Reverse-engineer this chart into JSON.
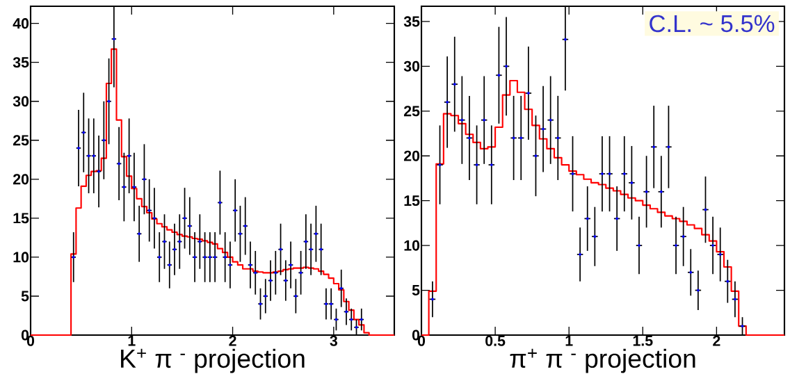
{
  "chart_data": [
    {
      "type": "scatter",
      "xlabel": "K$^{+}$ π $^{-}$ projection",
      "xlim": [
        0,
        3.6
      ],
      "ylim": [
        0,
        42.2
      ],
      "xticks": [
        0,
        1,
        2,
        3
      ],
      "yticks": [
        0,
        5,
        10,
        15,
        20,
        25,
        30,
        35,
        40
      ],
      "series": [
        {
          "color": "#0000ff",
          "marker": "circle",
          "x": [
            0.425,
            0.475,
            0.525,
            0.575,
            0.625,
            0.675,
            0.725,
            0.775,
            0.825,
            0.875,
            0.925,
            0.975,
            1.025,
            1.075,
            1.125,
            1.175,
            1.225,
            1.275,
            1.325,
            1.375,
            1.425,
            1.475,
            1.525,
            1.575,
            1.625,
            1.675,
            1.725,
            1.775,
            1.825,
            1.875,
            1.925,
            1.975,
            2.025,
            2.075,
            2.125,
            2.175,
            2.225,
            2.275,
            2.325,
            2.375,
            2.425,
            2.475,
            2.525,
            2.575,
            2.625,
            2.675,
            2.725,
            2.775,
            2.825,
            2.875,
            2.925,
            2.975,
            3.025,
            3.075,
            3.125,
            3.175,
            3.225,
            3.275
          ],
          "values": [
            10,
            24,
            26,
            23,
            23,
            21,
            25,
            30,
            38,
            22,
            19,
            23,
            19,
            13,
            20,
            16,
            15,
            10,
            12,
            9,
            11,
            12,
            15,
            14,
            10,
            12,
            10,
            10,
            10,
            17,
            10,
            9,
            16,
            13,
            14,
            9,
            8,
            4,
            5,
            7,
            8,
            11,
            7,
            9,
            5,
            8,
            12,
            11,
            13,
            11,
            4,
            4,
            2,
            6,
            3,
            2,
            1,
            2
          ],
          "errors": [
            3.2,
            4.9,
            5.1,
            4.8,
            4.8,
            4.6,
            5,
            5.5,
            [
              31.8,
              42.2
            ],
            4.7,
            4.4,
            4.8,
            4.4,
            3.6,
            4.5,
            4,
            3.9,
            3.2,
            3.5,
            3,
            3.3,
            3.5,
            3.9,
            3.7,
            3.2,
            3.5,
            3.2,
            3.2,
            3.2,
            4.1,
            3.2,
            3,
            4,
            3.6,
            3.7,
            3,
            2.8,
            2,
            2.2,
            2.6,
            2.8,
            3.3,
            2.6,
            3,
            2.2,
            2.8,
            3.5,
            3.3,
            3.6,
            3.3,
            2,
            2,
            1.4,
            2.4,
            1.7,
            1.4,
            1,
            1.4
          ],
          "xerrors": [
            0.0225,
            0.0225,
            0.0225,
            0.0225,
            0.0225,
            0.0225,
            0.0225,
            0.0225,
            0.0225,
            0.0225,
            0.0225,
            0.0225,
            0.0225,
            0.0225,
            0.0225,
            0.0225,
            0.0225,
            0.0225,
            0.0225,
            0.0225,
            0.0225,
            0.0225,
            0.0225,
            0.0225,
            0.0225,
            0.0225,
            0.0225,
            0.0225,
            0.0225,
            0.0225,
            0.0225,
            0.0225,
            0.0225,
            0.0225,
            0.0225,
            0.0225,
            0.0225,
            0.0225,
            0.0225,
            0.0225,
            0.0225,
            0.0225,
            0.0225,
            0.0225,
            0.0225,
            0.0225,
            0.0225,
            0.0225,
            0.0225,
            0.0225,
            0.0225,
            0.0225,
            0.0225,
            0.0225,
            0.0225,
            0.0225,
            0.0225,
            0.0225
          ]
        },
        {
          "type": "step",
          "color": "#ff0000",
          "x": [
            0,
            0.4,
            0.45,
            0.5,
            0.55,
            0.6,
            0.65,
            0.7,
            0.75,
            0.8,
            0.85,
            0.9,
            0.95,
            1.0,
            1.05,
            1.1,
            1.15,
            1.2,
            1.25,
            1.3,
            1.35,
            1.4,
            1.45,
            1.5,
            1.55,
            1.6,
            1.65,
            1.7,
            1.75,
            1.8,
            1.85,
            1.9,
            1.95,
            2.0,
            2.05,
            2.1,
            2.15,
            2.2,
            2.25,
            2.3,
            2.35,
            2.4,
            2.45,
            2.5,
            2.55,
            2.6,
            2.65,
            2.7,
            2.75,
            2.8,
            2.85,
            2.9,
            2.95,
            3.0,
            3.05,
            3.1,
            3.15,
            3.2,
            3.25,
            3.3,
            3.35,
            3.6
          ],
          "values": [
            0,
            10.4,
            16.3,
            19.1,
            20.5,
            21.0,
            21.1,
            22.7,
            32.3,
            36.7,
            27.6,
            22.9,
            20.4,
            18.8,
            17.5,
            16.5,
            15.7,
            14.9,
            14.3,
            13.9,
            13.5,
            13.2,
            12.9,
            12.7,
            12.6,
            12.4,
            12.3,
            12.1,
            11.9,
            11.7,
            11.1,
            10.6,
            10.0,
            9.4,
            9.0,
            8.5,
            8.5,
            8.2,
            8.1,
            8.0,
            8.0,
            8.1,
            8.2,
            8.4,
            8.5,
            8.6,
            8.6,
            8.7,
            8.6,
            8.5,
            8.2,
            7.8,
            7.3,
            6.6,
            5.8,
            4.3,
            3.2,
            2.0,
            1.3,
            0.3,
            0,
            0
          ]
        }
      ]
    },
    {
      "type": "scatter",
      "xlabel": "π$^{+}$ π $^{-}$  projection",
      "xlim": [
        0,
        2.46
      ],
      "ylim": [
        0,
        36.7
      ],
      "xticks": [
        0,
        0.5,
        1,
        1.5,
        2
      ],
      "yticks": [
        0,
        5,
        10,
        15,
        20,
        25,
        30,
        35
      ],
      "annotations": [
        "C.L. ~ 5.5%"
      ],
      "series": [
        {
          "color": "#0000ff",
          "marker": "circle",
          "x": [
            0.075,
            0.125,
            0.175,
            0.225,
            0.275,
            0.325,
            0.375,
            0.425,
            0.475,
            0.525,
            0.575,
            0.625,
            0.675,
            0.725,
            0.775,
            0.825,
            0.875,
            0.925,
            0.975,
            1.025,
            1.075,
            1.125,
            1.175,
            1.225,
            1.275,
            1.325,
            1.375,
            1.425,
            1.475,
            1.525,
            1.575,
            1.625,
            1.675,
            1.725,
            1.775,
            1.825,
            1.875,
            1.925,
            1.975,
            2.025,
            2.075,
            2.125,
            2.175
          ],
          "values": [
            4,
            19,
            26,
            28,
            24,
            22,
            19,
            24,
            19,
            29,
            30,
            22,
            22,
            27,
            20,
            23,
            24,
            22,
            33,
            18,
            9,
            13,
            11,
            18,
            18,
            13,
            18,
            17,
            10,
            16,
            21,
            16,
            21,
            10,
            11,
            7,
            5,
            14,
            10,
            9,
            6,
            4,
            1
          ],
          "errors": [
            2,
            4.4,
            5.1,
            5.3,
            4.9,
            4.7,
            4.4,
            4.9,
            4.4,
            5.4,
            5.5,
            4.7,
            4.7,
            5.2,
            4.5,
            4.8,
            4.9,
            4.7,
            [
              27.3,
              36.7
            ],
            4.2,
            3,
            3.6,
            3.3,
            4.2,
            4.2,
            3.6,
            4.2,
            4.1,
            3.2,
            4,
            4.6,
            4,
            4.6,
            3.2,
            3.3,
            2.6,
            2.2,
            3.7,
            3.2,
            3,
            2.4,
            2,
            1
          ],
          "xerrors": [
            0.02,
            0.02,
            0.02,
            0.02,
            0.02,
            0.02,
            0.02,
            0.02,
            0.02,
            0.02,
            0.02,
            0.02,
            0.02,
            0.02,
            0.02,
            0.02,
            0.02,
            0.02,
            0.02,
            0.02,
            0.02,
            0.02,
            0.02,
            0.02,
            0.02,
            0.02,
            0.02,
            0.02,
            0.02,
            0.02,
            0.02,
            0.02,
            0.02,
            0.02,
            0.02,
            0.02,
            0.02,
            0.02,
            0.02,
            0.02,
            0.02,
            0.02,
            0.02
          ]
        },
        {
          "type": "step",
          "color": "#ff0000",
          "x": [
            0,
            0.05,
            0.1,
            0.15,
            0.2,
            0.25,
            0.3,
            0.35,
            0.4,
            0.45,
            0.5,
            0.55,
            0.6,
            0.65,
            0.7,
            0.75,
            0.8,
            0.85,
            0.9,
            0.95,
            1.0,
            1.05,
            1.1,
            1.15,
            1.2,
            1.25,
            1.3,
            1.35,
            1.4,
            1.45,
            1.5,
            1.55,
            1.6,
            1.65,
            1.7,
            1.75,
            1.8,
            1.85,
            1.9,
            1.95,
            2.0,
            2.05,
            2.1,
            2.15,
            2.2,
            2.46
          ],
          "values": [
            0,
            4.9,
            19.1,
            24.7,
            24.5,
            23.6,
            22.4,
            21.5,
            20.8,
            21.0,
            23.2,
            26.8,
            28.4,
            27.1,
            25.2,
            23.4,
            21.9,
            20.8,
            19.8,
            19.0,
            18.3,
            17.9,
            17.4,
            17.0,
            16.8,
            16.4,
            16.1,
            15.7,
            15.3,
            15.0,
            14.5,
            14.1,
            13.7,
            13.3,
            13.0,
            12.7,
            12.3,
            11.9,
            11.2,
            10.5,
            9.3,
            7.6,
            4.9,
            1.0,
            0,
            0
          ]
        }
      ]
    }
  ]
}
